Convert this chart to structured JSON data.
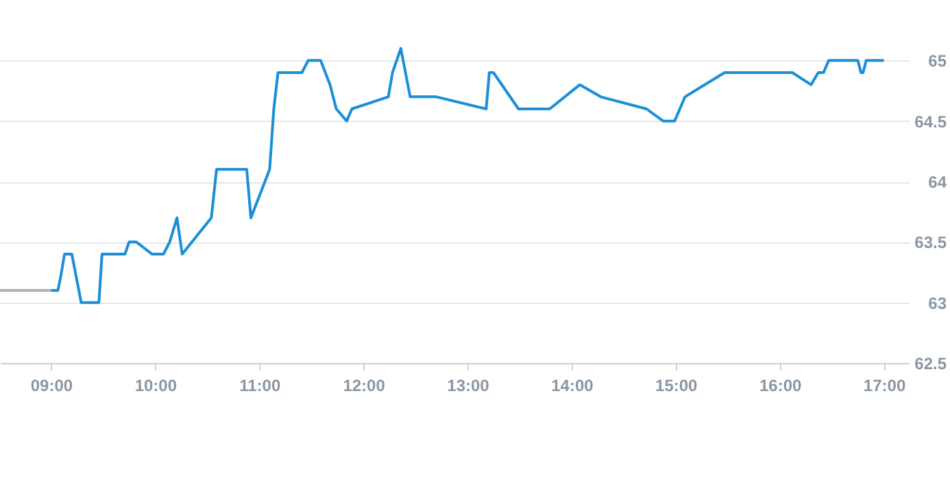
{
  "chart_data": {
    "type": "line",
    "series": [
      {
        "color": "#aab4bd",
        "x": [
          8.51,
          9.0
        ],
        "values": [
          63.1,
          63.1
        ]
      },
      {
        "color": "#1a8fd8",
        "x": [
          9.0,
          9.066,
          9.09,
          9.13,
          9.2,
          9.29,
          9.46,
          9.49,
          9.71,
          9.75,
          9.82,
          9.97,
          10.08,
          10.14,
          10.21,
          10.26,
          10.54,
          10.59,
          10.88,
          10.92,
          11.1,
          11.14,
          11.18,
          11.41,
          11.47,
          11.59,
          11.68,
          11.74,
          11.84,
          11.89,
          12.24,
          12.28,
          12.36,
          12.45,
          12.7,
          13.18,
          13.21,
          13.25,
          13.49,
          13.79,
          14.08,
          14.28,
          14.72,
          14.88,
          14.99,
          15.09,
          15.47,
          16.12,
          16.3,
          16.37,
          16.42,
          16.47,
          16.75,
          16.78,
          16.8,
          16.83,
          17.0
        ],
        "values": [
          63.1,
          63.1,
          63.2,
          63.4,
          63.4,
          63.0,
          63.0,
          63.4,
          63.4,
          63.5,
          63.5,
          63.4,
          63.4,
          63.5,
          63.7,
          63.4,
          63.7,
          64.1,
          64.1,
          63.7,
          64.1,
          64.6,
          64.9,
          64.9,
          65.0,
          65.0,
          64.8,
          64.6,
          64.5,
          64.6,
          64.7,
          64.9,
          65.1,
          64.7,
          64.7,
          64.6,
          64.9,
          64.9,
          64.6,
          64.6,
          64.8,
          64.7,
          64.6,
          64.5,
          64.5,
          64.7,
          64.9,
          64.9,
          64.8,
          64.9,
          64.9,
          65.0,
          65.0,
          64.9,
          64.9,
          65.0,
          65.0
        ]
      }
    ],
    "xlim": [
      8.51,
      17.24
    ],
    "xticks": [
      {
        "value": 9,
        "label": "09:00"
      },
      {
        "value": 10,
        "label": "10:00"
      },
      {
        "value": 11,
        "label": "11:00"
      },
      {
        "value": 12,
        "label": "12:00"
      },
      {
        "value": 13,
        "label": "13:00"
      },
      {
        "value": 14,
        "label": "14:00"
      },
      {
        "value": 15,
        "label": "15:00"
      },
      {
        "value": 16,
        "label": "16:00"
      },
      {
        "value": 17,
        "label": "17:00"
      }
    ],
    "ylim": [
      62.5,
      65.5
    ],
    "yticks": [
      62.5,
      63,
      63.5,
      64,
      64.5,
      65
    ],
    "grid": "y",
    "marker": "none",
    "line_style": "solid"
  }
}
